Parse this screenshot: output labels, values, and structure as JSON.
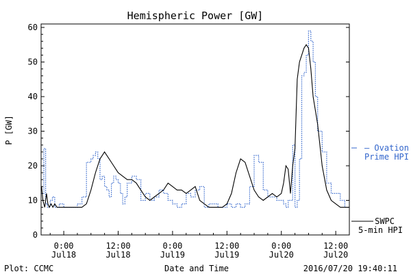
{
  "chart_data": {
    "type": "line",
    "title": "Hemispheric Power [GW]",
    "ylabel": "P [GW]",
    "xlabel": "Date and Time",
    "ylim": [
      0,
      61
    ],
    "xlim": [
      -5,
      63
    ],
    "x_unit": "hours since 2016-07-18 00:00 UTC",
    "y_ticks": [
      0,
      10,
      20,
      30,
      40,
      50,
      60
    ],
    "x_ticks": [
      {
        "x": 0,
        "time": "0:00",
        "date": "Jul18"
      },
      {
        "x": 12,
        "time": "12:00",
        "date": "Jul18"
      },
      {
        "x": 24,
        "time": "0:00",
        "date": "Jul19"
      },
      {
        "x": 36,
        "time": "12:00",
        "date": "Jul19"
      },
      {
        "x": 48,
        "time": "0:00",
        "date": "Jul20"
      },
      {
        "x": 60,
        "time": "12:00",
        "date": "Jul20"
      }
    ],
    "footer_left": "Plot: CCMC",
    "footer_right": "2016/07/20 19:40:11",
    "grid": false,
    "series": [
      {
        "name": "Ovation Prime HPI",
        "label_lines": [
          "— Ovation",
          "Prime HPI"
        ],
        "color": "#3366cc",
        "style": "dotted-step",
        "x": [
          -4.9,
          -4.4,
          -4.0,
          -3.6,
          -3.0,
          -2.5,
          -2.0,
          -1.0,
          0.0,
          1.0,
          2.0,
          3.0,
          4.0,
          5.0,
          6.0,
          6.5,
          7.0,
          7.5,
          8.0,
          8.5,
          9.0,
          9.5,
          10.0,
          10.5,
          11.0,
          11.5,
          12.0,
          12.5,
          13.0,
          13.5,
          14.0,
          15.0,
          16.0,
          17.0,
          18.0,
          19.0,
          20.0,
          21.0,
          22.0,
          23.0,
          24.0,
          25.0,
          26.0,
          27.0,
          28.0,
          29.0,
          30.0,
          31.0,
          32.0,
          33.0,
          34.0,
          35.0,
          36.0,
          37.0,
          38.0,
          39.0,
          40.0,
          41.0,
          42.0,
          43.0,
          44.0,
          45.0,
          46.0,
          47.0,
          48.0,
          48.5,
          49.0,
          49.5,
          50.0,
          50.5,
          51.0,
          51.5,
          52.0,
          52.5,
          53.0,
          53.5,
          54.0,
          54.5,
          55.0,
          55.5,
          56.0,
          57.0,
          58.0,
          59.0,
          60.0,
          61.0,
          62.0
        ],
        "y": [
          12,
          25,
          9,
          8,
          10,
          11,
          8,
          9,
          8,
          8,
          8,
          9,
          11,
          21,
          22,
          23,
          24,
          22,
          16,
          17,
          14,
          13,
          11,
          15,
          17,
          16,
          15,
          12,
          9,
          11,
          15,
          17,
          16,
          10,
          12,
          10,
          11,
          13,
          12,
          10,
          9,
          8,
          9,
          12,
          11,
          13,
          14,
          8,
          9,
          9,
          8,
          8,
          9,
          8,
          9,
          8,
          9,
          14,
          23,
          21,
          13,
          11,
          11,
          10,
          10,
          9,
          8,
          10,
          10,
          26,
          8,
          10,
          22,
          46,
          47,
          52,
          59,
          56,
          50,
          40,
          30,
          24,
          15,
          12,
          12,
          10,
          8
        ]
      },
      {
        "name": "SWPC 5-min HPI",
        "label_lines": [
          "SWPC",
          "5-min HPI"
        ],
        "color": "#000000",
        "style": "solid",
        "x": [
          -4.9,
          -4.6,
          -4.2,
          -3.8,
          -3.5,
          -3.2,
          -2.8,
          -2.4,
          -2.0,
          -1.5,
          -1.0,
          -0.5,
          0.0,
          1.0,
          2.0,
          3.0,
          4.0,
          5.0,
          6.0,
          7.0,
          8.0,
          8.5,
          9.0,
          9.5,
          10.0,
          10.5,
          11.0,
          11.5,
          12.0,
          13.0,
          14.0,
          15.0,
          16.0,
          17.0,
          18.0,
          19.0,
          20.0,
          21.0,
          22.0,
          23.0,
          24.0,
          25.0,
          26.0,
          27.0,
          28.0,
          29.0,
          30.0,
          31.0,
          32.0,
          33.0,
          34.0,
          35.0,
          36.0,
          37.0,
          38.0,
          39.0,
          40.0,
          41.0,
          42.0,
          43.0,
          44.0,
          45.0,
          46.0,
          47.0,
          48.0,
          48.5,
          49.0,
          49.5,
          50.0,
          50.5,
          51.0,
          51.5,
          52.0,
          52.5,
          53.0,
          53.5,
          54.0,
          54.5,
          55.0,
          56.0,
          57.0,
          58.0,
          59.0,
          60.0,
          61.0,
          62.0,
          63.0
        ],
        "y": [
          14,
          10,
          8,
          12,
          9,
          8,
          9,
          8,
          9,
          8,
          8,
          8,
          8,
          8,
          8,
          8,
          8,
          9,
          13,
          18,
          22,
          23,
          24,
          23,
          22,
          21,
          20,
          19,
          18,
          17,
          16,
          16,
          15,
          13,
          11,
          10,
          11,
          12,
          13,
          15,
          14,
          13,
          13,
          12,
          13,
          14,
          10,
          9,
          8,
          8,
          8,
          8,
          9,
          12,
          18,
          22,
          21,
          17,
          13,
          11,
          10,
          11,
          12,
          11,
          12,
          15,
          20,
          19,
          12,
          20,
          25,
          45,
          50,
          52,
          54,
          55,
          54,
          48,
          40,
          32,
          20,
          13,
          10,
          9,
          8,
          8,
          8
        ]
      }
    ]
  }
}
